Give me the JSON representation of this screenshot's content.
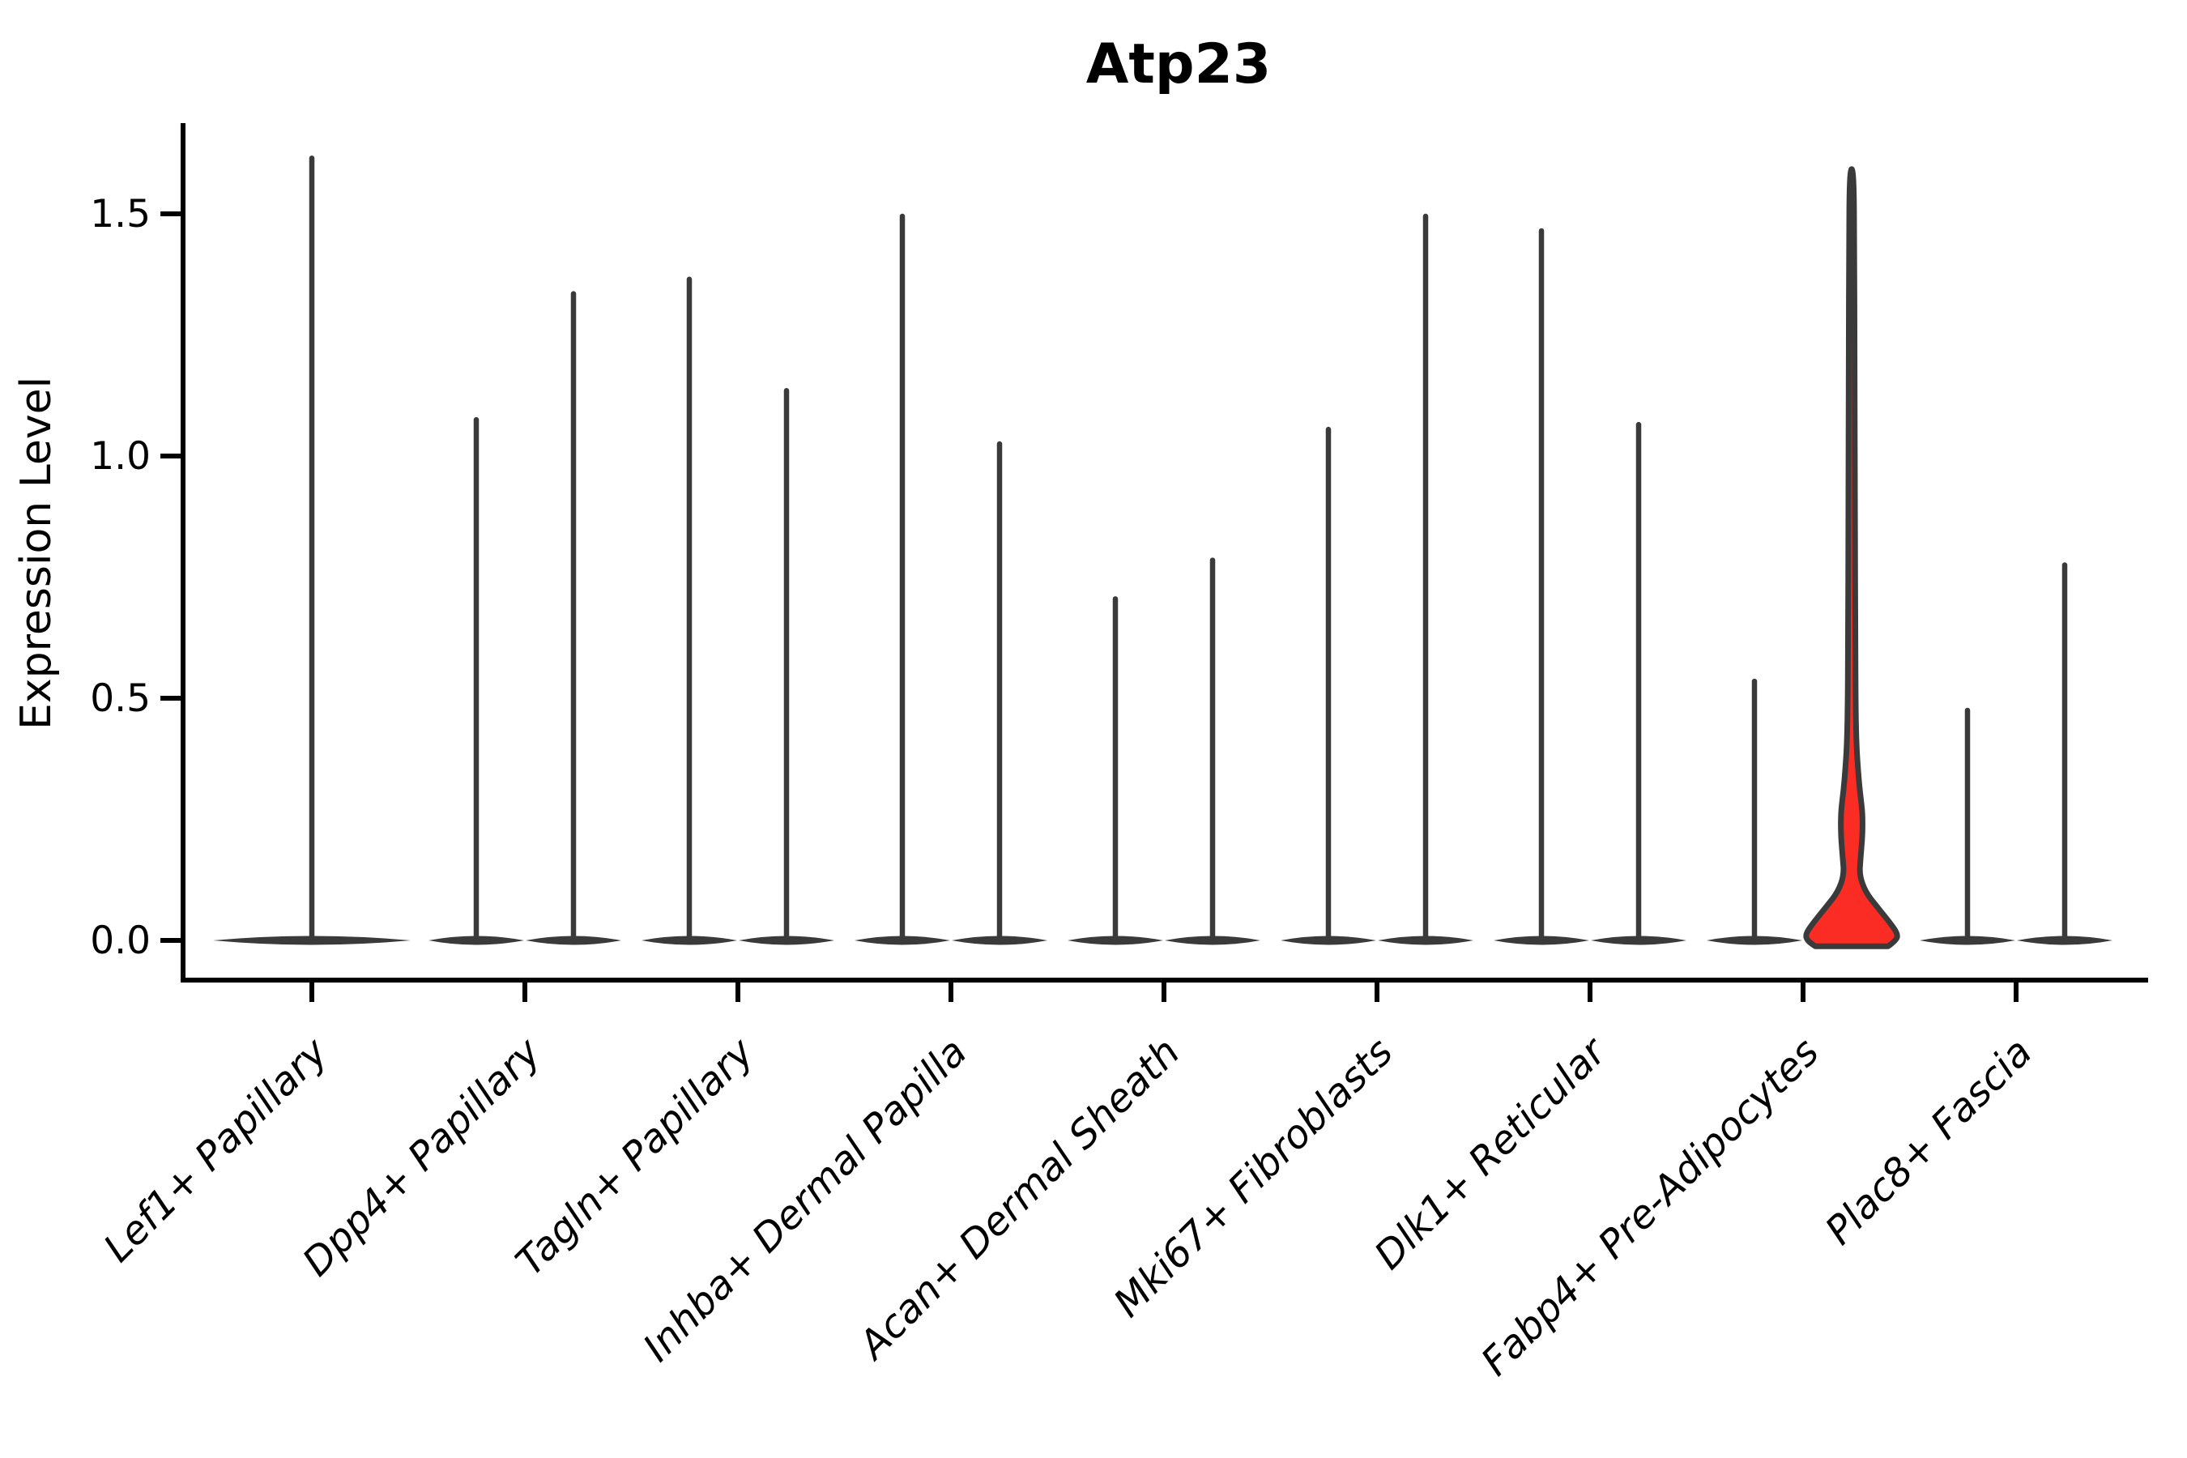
{
  "chart_data": {
    "type": "violin",
    "title": "Atp23",
    "xlabel": "",
    "ylabel": "Expression Level",
    "grid": false,
    "legend": "none",
    "background": "#ffffff",
    "axis_color": "#000000",
    "outline_color": "#3a3a3a",
    "highlight_color": "#fa2c24",
    "ylim": [
      -0.08,
      1.68
    ],
    "yticks": [
      0.0,
      0.5,
      1.0,
      1.5
    ],
    "ytick_labels": [
      "0.0",
      "0.5",
      "1.0",
      "1.5"
    ],
    "categories": [
      "Lef1+ Papillary",
      "Dpp4+ Papillary",
      "Tagln+ Papillary",
      "Inhba+ Dermal Papilla",
      "Acan+ Dermal Sheath",
      "Mki67+ Fibroblasts",
      "Dlk1+ Reticular",
      "Fabp4+ Pre-Adipocytes",
      "Plac8+ Fascia"
    ],
    "violin_style": "each category shows thin near-zero violins: a flat lens at 0 with a thin spike to the max expression; Lef1+ Papillary has a single centered violin, all other categories have a left and right split violin; only the right violin of Fabp4+ Pre-Adipocytes is filled red with a visible density bulge",
    "violins": [
      {
        "category": "Lef1+ Papillary",
        "position": "center",
        "max": 1.62,
        "fill": "#ffffff",
        "highlighted": false
      },
      {
        "category": "Dpp4+ Papillary",
        "position": "left",
        "max": 1.08,
        "fill": "#ffffff",
        "highlighted": false
      },
      {
        "category": "Dpp4+ Papillary",
        "position": "right",
        "max": 1.34,
        "fill": "#ffffff",
        "highlighted": false
      },
      {
        "category": "Tagln+ Papillary",
        "position": "left",
        "max": 1.37,
        "fill": "#ffffff",
        "highlighted": false
      },
      {
        "category": "Tagln+ Papillary",
        "position": "right",
        "max": 1.14,
        "fill": "#ffffff",
        "highlighted": false
      },
      {
        "category": "Inhba+ Dermal Papilla",
        "position": "left",
        "max": 1.5,
        "fill": "#ffffff",
        "highlighted": false
      },
      {
        "category": "Inhba+ Dermal Papilla",
        "position": "right",
        "max": 1.03,
        "fill": "#ffffff",
        "highlighted": false
      },
      {
        "category": "Acan+ Dermal Sheath",
        "position": "left",
        "max": 0.71,
        "fill": "#ffffff",
        "highlighted": false
      },
      {
        "category": "Acan+ Dermal Sheath",
        "position": "right",
        "max": 0.79,
        "fill": "#ffffff",
        "highlighted": false
      },
      {
        "category": "Mki67+ Fibroblasts",
        "position": "left",
        "max": 1.06,
        "fill": "#ffffff",
        "highlighted": false
      },
      {
        "category": "Mki67+ Fibroblasts",
        "position": "right",
        "max": 1.5,
        "fill": "#ffffff",
        "highlighted": false
      },
      {
        "category": "Dlk1+ Reticular",
        "position": "left",
        "max": 1.47,
        "fill": "#ffffff",
        "highlighted": false
      },
      {
        "category": "Dlk1+ Reticular",
        "position": "right",
        "max": 1.07,
        "fill": "#ffffff",
        "highlighted": false
      },
      {
        "category": "Fabp4+ Pre-Adipocytes",
        "position": "left",
        "max": 0.54,
        "fill": "#ffffff",
        "highlighted": false
      },
      {
        "category": "Fabp4+ Pre-Adipocytes",
        "position": "right",
        "max": 1.6,
        "fill": "#fa2c24",
        "highlighted": true
      },
      {
        "category": "Plac8+ Fascia",
        "position": "left",
        "max": 0.48,
        "fill": "#ffffff",
        "highlighted": false
      },
      {
        "category": "Plac8+ Fascia",
        "position": "right",
        "max": 0.78,
        "fill": "#ffffff",
        "highlighted": false
      }
    ],
    "highlight_profile": [
      [
        -0.012,
        45
      ],
      [
        0.0,
        55
      ],
      [
        0.013,
        57
      ],
      [
        0.035,
        48
      ],
      [
        0.07,
        31
      ],
      [
        0.1,
        17
      ],
      [
        0.135,
        9.5
      ],
      [
        0.17,
        11
      ],
      [
        0.21,
        13
      ],
      [
        0.24,
        13.5
      ],
      [
        0.27,
        13
      ],
      [
        0.31,
        10
      ],
      [
        0.35,
        8
      ],
      [
        0.4,
        6
      ],
      [
        0.47,
        5
      ],
      [
        0.6,
        4.5
      ],
      [
        0.9,
        4.0
      ],
      [
        1.2,
        3.6
      ],
      [
        1.45,
        3.2
      ],
      [
        1.57,
        2.6
      ],
      [
        1.6,
        0
      ]
    ]
  }
}
